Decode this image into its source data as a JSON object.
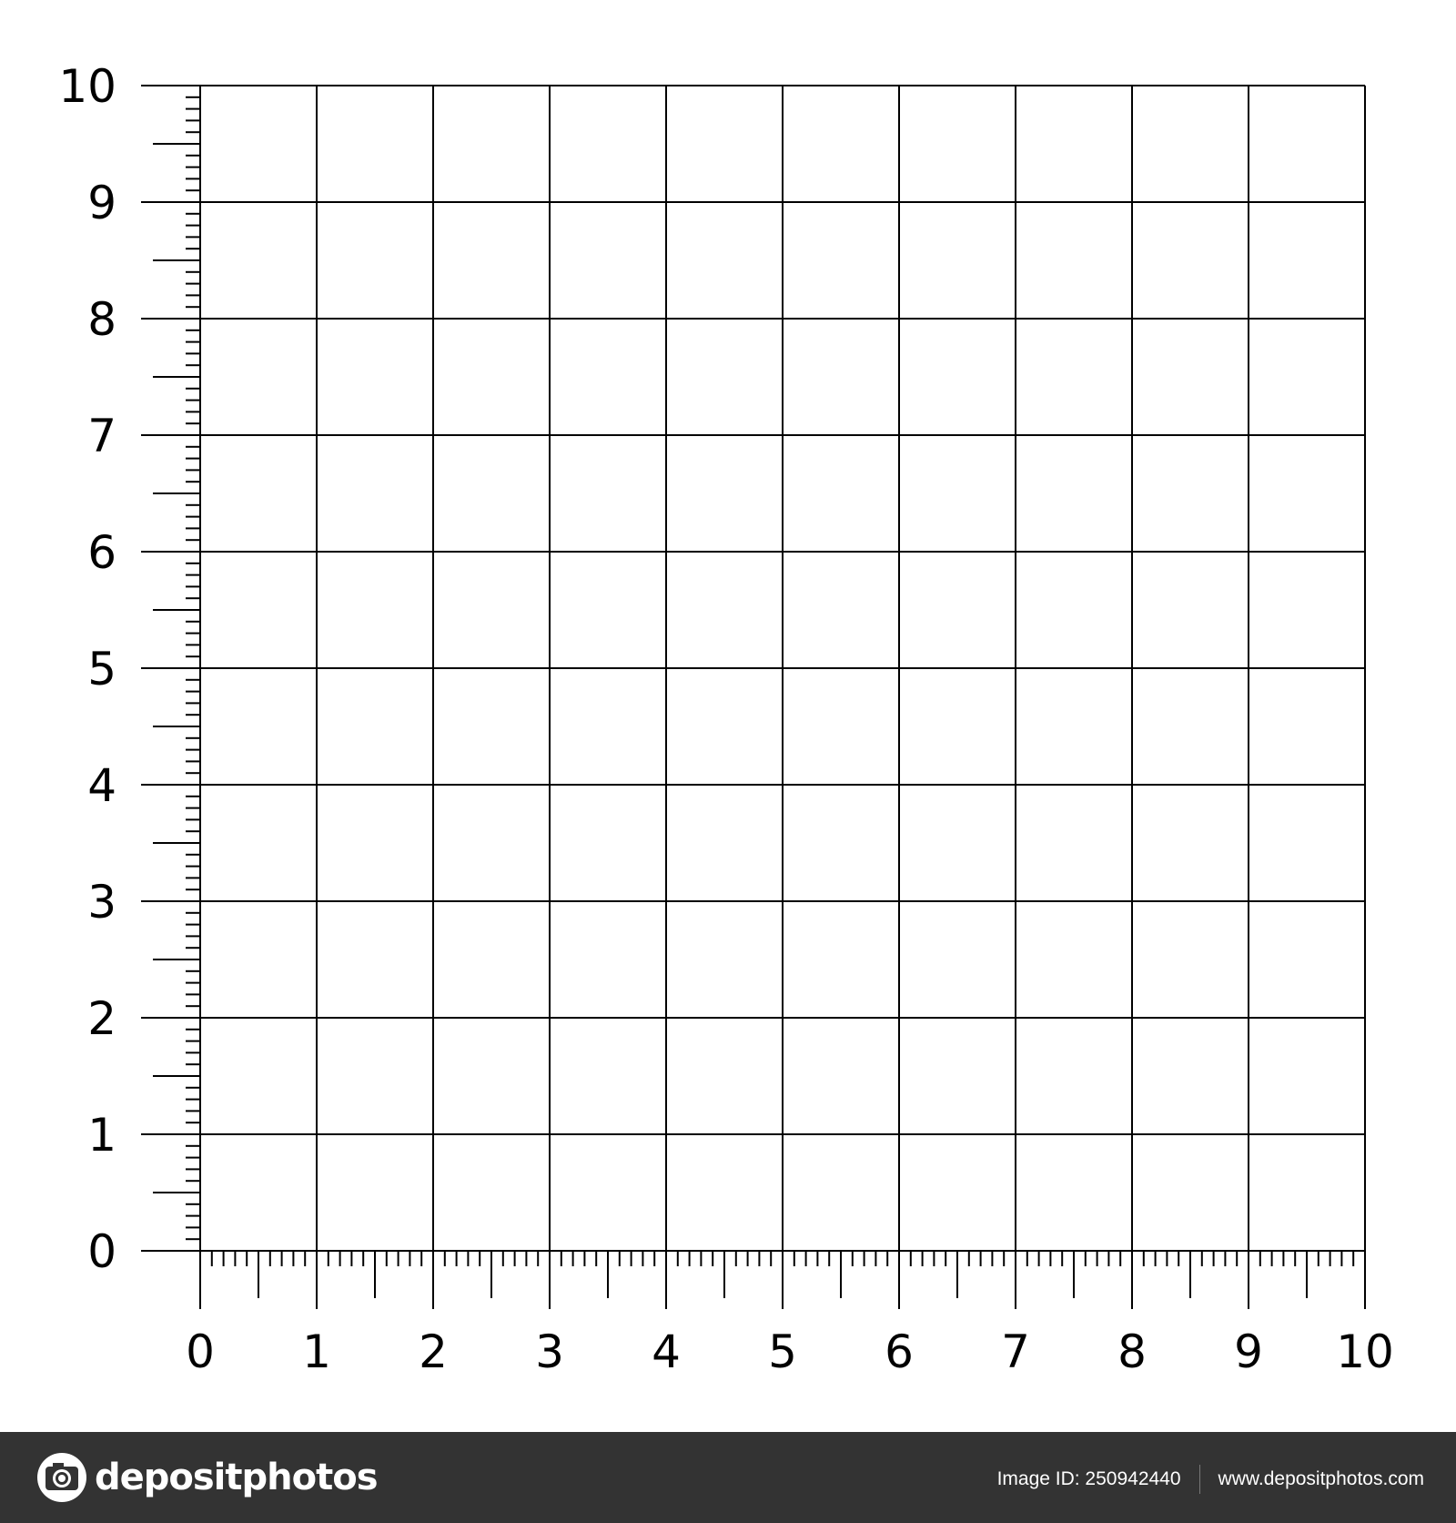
{
  "chart_data": {
    "type": "scatter",
    "title": "",
    "xlabel": "",
    "ylabel": "",
    "xlim": [
      0,
      10
    ],
    "ylim": [
      0,
      10
    ],
    "x_ticks": [
      "0",
      "1",
      "2",
      "3",
      "4",
      "5",
      "6",
      "7",
      "8",
      "9",
      "10"
    ],
    "y_ticks": [
      "0",
      "1",
      "2",
      "3",
      "4",
      "5",
      "6",
      "7",
      "8",
      "9",
      "10"
    ],
    "minor_tick_step": 0.1,
    "grid": true,
    "grid_step": 1,
    "series": [],
    "line_color": "#000000"
  },
  "footer": {
    "brand": "depositphotos",
    "image_id": "Image ID: 250942440",
    "website": "www.depositphotos.com",
    "background": "#333333"
  }
}
